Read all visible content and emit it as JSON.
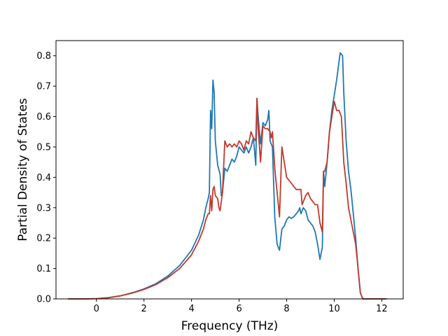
{
  "chart_data": {
    "type": "line",
    "title": "",
    "xlabel": "Frequency (THz)",
    "ylabel": "Partial Density of States",
    "xlim": [
      -1.7,
      12.9
    ],
    "ylim": [
      0.0,
      0.85
    ],
    "xticks": [
      0,
      2,
      4,
      6,
      8,
      10,
      12
    ],
    "yticks": [
      0.0,
      0.1,
      0.2,
      0.3,
      0.4,
      0.5,
      0.6,
      0.7,
      0.8
    ],
    "grid": false,
    "legend": "none",
    "series": [
      {
        "color": "#1f77b4",
        "points": [
          [
            -1.2,
            0.0
          ],
          [
            -0.5,
            0.0
          ],
          [
            0.0,
            0.001
          ],
          [
            0.5,
            0.004
          ],
          [
            1.0,
            0.01
          ],
          [
            1.5,
            0.02
          ],
          [
            2.0,
            0.033
          ],
          [
            2.5,
            0.05
          ],
          [
            3.0,
            0.075
          ],
          [
            3.5,
            0.11
          ],
          [
            4.0,
            0.16
          ],
          [
            4.3,
            0.21
          ],
          [
            4.5,
            0.26
          ],
          [
            4.6,
            0.3
          ],
          [
            4.7,
            0.33
          ],
          [
            4.75,
            0.35
          ],
          [
            4.8,
            0.62
          ],
          [
            4.85,
            0.56
          ],
          [
            4.9,
            0.72
          ],
          [
            4.95,
            0.68
          ],
          [
            5.0,
            0.52
          ],
          [
            5.1,
            0.44
          ],
          [
            5.2,
            0.41
          ],
          [
            5.25,
            0.34
          ],
          [
            5.3,
            0.35
          ],
          [
            5.4,
            0.43
          ],
          [
            5.5,
            0.42
          ],
          [
            5.6,
            0.44
          ],
          [
            5.7,
            0.46
          ],
          [
            5.8,
            0.45
          ],
          [
            5.9,
            0.47
          ],
          [
            6.0,
            0.5
          ],
          [
            6.1,
            0.49
          ],
          [
            6.2,
            0.48
          ],
          [
            6.3,
            0.5
          ],
          [
            6.4,
            0.48
          ],
          [
            6.5,
            0.5
          ],
          [
            6.6,
            0.53
          ],
          [
            6.7,
            0.44
          ],
          [
            6.75,
            0.66
          ],
          [
            6.8,
            0.6
          ],
          [
            6.9,
            0.51
          ],
          [
            7.0,
            0.58
          ],
          [
            7.1,
            0.57
          ],
          [
            7.2,
            0.59
          ],
          [
            7.25,
            0.62
          ],
          [
            7.3,
            0.52
          ],
          [
            7.4,
            0.5
          ],
          [
            7.5,
            0.27
          ],
          [
            7.6,
            0.18
          ],
          [
            7.7,
            0.16
          ],
          [
            7.8,
            0.23
          ],
          [
            7.9,
            0.24
          ],
          [
            8.0,
            0.26
          ],
          [
            8.1,
            0.27
          ],
          [
            8.2,
            0.265
          ],
          [
            8.3,
            0.27
          ],
          [
            8.4,
            0.28
          ],
          [
            8.5,
            0.29
          ],
          [
            8.55,
            0.3
          ],
          [
            8.6,
            0.28
          ],
          [
            8.7,
            0.3
          ],
          [
            8.8,
            0.29
          ],
          [
            8.9,
            0.26
          ],
          [
            9.0,
            0.25
          ],
          [
            9.1,
            0.24
          ],
          [
            9.2,
            0.22
          ],
          [
            9.3,
            0.18
          ],
          [
            9.4,
            0.13
          ],
          [
            9.5,
            0.17
          ],
          [
            9.55,
            0.42
          ],
          [
            9.6,
            0.37
          ],
          [
            9.7,
            0.45
          ],
          [
            9.8,
            0.55
          ],
          [
            9.9,
            0.62
          ],
          [
            10.0,
            0.67
          ],
          [
            10.1,
            0.72
          ],
          [
            10.2,
            0.78
          ],
          [
            10.25,
            0.81
          ],
          [
            10.35,
            0.8
          ],
          [
            10.4,
            0.68
          ],
          [
            10.5,
            0.52
          ],
          [
            10.6,
            0.42
          ],
          [
            10.7,
            0.36
          ],
          [
            10.8,
            0.28
          ],
          [
            10.9,
            0.2
          ],
          [
            11.0,
            0.1
          ],
          [
            11.1,
            0.02
          ],
          [
            11.2,
            0.0
          ],
          [
            11.6,
            0.0
          ],
          [
            12.2,
            0.0
          ]
        ]
      },
      {
        "color": "#c0392b",
        "points": [
          [
            -1.2,
            0.0
          ],
          [
            -0.5,
            0.0
          ],
          [
            0.0,
            0.001
          ],
          [
            0.5,
            0.004
          ],
          [
            1.0,
            0.01
          ],
          [
            1.5,
            0.019
          ],
          [
            2.0,
            0.031
          ],
          [
            2.5,
            0.047
          ],
          [
            3.0,
            0.07
          ],
          [
            3.5,
            0.1
          ],
          [
            4.0,
            0.145
          ],
          [
            4.3,
            0.19
          ],
          [
            4.5,
            0.23
          ],
          [
            4.6,
            0.26
          ],
          [
            4.7,
            0.28
          ],
          [
            4.75,
            0.28
          ],
          [
            4.8,
            0.34
          ],
          [
            4.85,
            0.29
          ],
          [
            4.9,
            0.36
          ],
          [
            4.95,
            0.37
          ],
          [
            5.0,
            0.34
          ],
          [
            5.1,
            0.33
          ],
          [
            5.15,
            0.3
          ],
          [
            5.2,
            0.29
          ],
          [
            5.3,
            0.35
          ],
          [
            5.4,
            0.52
          ],
          [
            5.5,
            0.5
          ],
          [
            5.6,
            0.51
          ],
          [
            5.7,
            0.5
          ],
          [
            5.8,
            0.51
          ],
          [
            5.9,
            0.5
          ],
          [
            6.0,
            0.52
          ],
          [
            6.1,
            0.51
          ],
          [
            6.2,
            0.49
          ],
          [
            6.3,
            0.52
          ],
          [
            6.4,
            0.51
          ],
          [
            6.5,
            0.55
          ],
          [
            6.6,
            0.53
          ],
          [
            6.7,
            0.52
          ],
          [
            6.75,
            0.66
          ],
          [
            6.8,
            0.56
          ],
          [
            6.9,
            0.45
          ],
          [
            7.0,
            0.57
          ],
          [
            7.1,
            0.56
          ],
          [
            7.2,
            0.56
          ],
          [
            7.3,
            0.55
          ],
          [
            7.35,
            0.53
          ],
          [
            7.4,
            0.55
          ],
          [
            7.5,
            0.43
          ],
          [
            7.6,
            0.35
          ],
          [
            7.7,
            0.27
          ],
          [
            7.8,
            0.5
          ],
          [
            7.9,
            0.45
          ],
          [
            8.0,
            0.4
          ],
          [
            8.2,
            0.38
          ],
          [
            8.4,
            0.36
          ],
          [
            8.6,
            0.36
          ],
          [
            8.65,
            0.31
          ],
          [
            8.8,
            0.34
          ],
          [
            8.9,
            0.35
          ],
          [
            9.0,
            0.33
          ],
          [
            9.2,
            0.31
          ],
          [
            9.3,
            0.31
          ],
          [
            9.4,
            0.25
          ],
          [
            9.5,
            0.22
          ],
          [
            9.55,
            0.42
          ],
          [
            9.6,
            0.42
          ],
          [
            9.7,
            0.45
          ],
          [
            9.8,
            0.55
          ],
          [
            9.9,
            0.6
          ],
          [
            10.0,
            0.65
          ],
          [
            10.1,
            0.62
          ],
          [
            10.2,
            0.62
          ],
          [
            10.3,
            0.6
          ],
          [
            10.4,
            0.45
          ],
          [
            10.5,
            0.38
          ],
          [
            10.6,
            0.3
          ],
          [
            10.7,
            0.26
          ],
          [
            10.8,
            0.22
          ],
          [
            10.9,
            0.18
          ],
          [
            11.0,
            0.1
          ],
          [
            11.1,
            0.02
          ],
          [
            11.2,
            0.0
          ],
          [
            11.6,
            0.0
          ],
          [
            12.2,
            0.0
          ]
        ]
      }
    ]
  }
}
